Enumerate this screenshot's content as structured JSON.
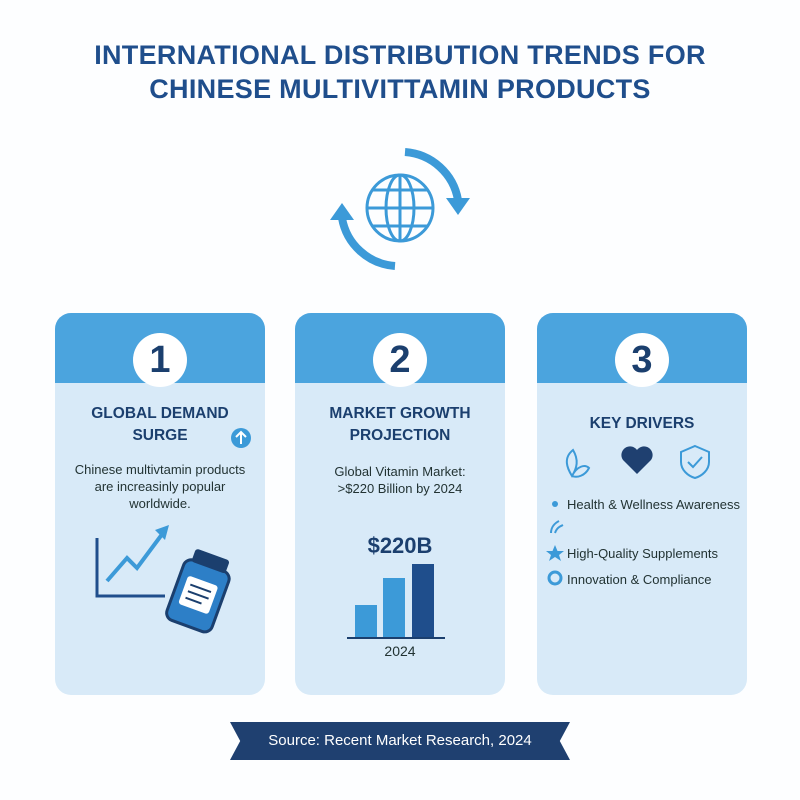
{
  "header": {
    "title_lines": [
      "INTERNATIONAL DISTRIBUTION TRENDS FOR",
      "CHINESE MULTIVITTAMIN PRODUCTS"
    ]
  },
  "cards": [
    {
      "number": "1",
      "heading_lines": [
        "GLOBAL DEMAND",
        "SURGE"
      ],
      "text_lines": [
        "Chinese multivtamin products",
        "are increasinly popular",
        "worldwide."
      ]
    },
    {
      "number": "2",
      "heading_lines": [
        "MARKET GROWTH",
        "PROJECTION"
      ],
      "text_lines": [
        "Global Vitamin Market:",
        ">$220 Billion by 2024"
      ],
      "figure": "$220B",
      "year": "2024"
    },
    {
      "number": "3",
      "heading_lines": [
        "KEY DRIVERS"
      ],
      "items": [
        "Health & Wellness Awareness",
        "High-Quality Supplements",
        "Innovation & Compliance"
      ]
    }
  ],
  "footer": {
    "source": "Source: Recent Market Research, 2024"
  }
}
